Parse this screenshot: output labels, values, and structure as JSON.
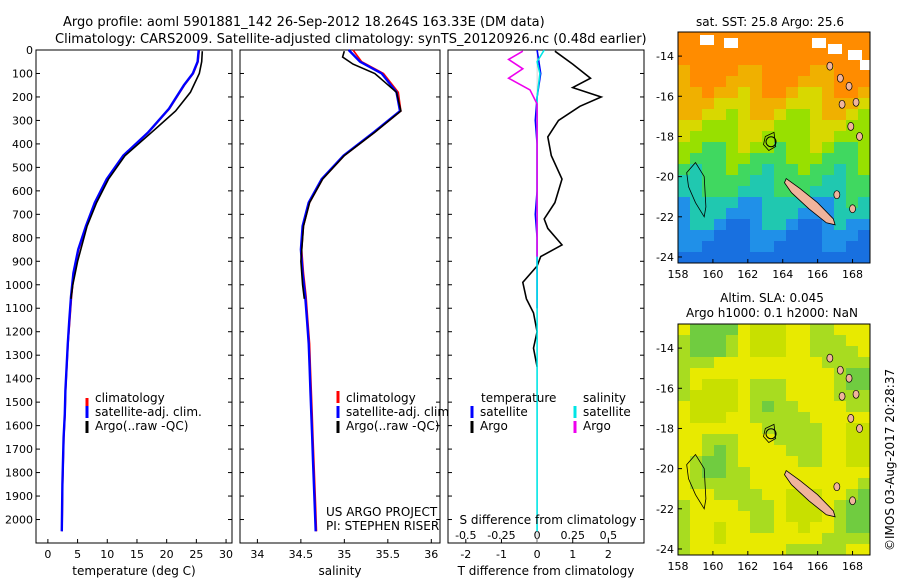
{
  "header": {
    "line1": "Argo profile: aoml 5901881_142 26-Sep-2012 18.264S 163.33E (DM data)",
    "line2": "Climatology: CARS2009. Satellite-adjusted climatology: synTS_20120926.nc (0.48d earlier)"
  },
  "colors": {
    "clim": "#ff0000",
    "sat": "#0000ff",
    "argo": "#000000",
    "sat_s": "#00e5e5",
    "argo_s": "#ee00ee",
    "land": "#f0b49c"
  },
  "project": {
    "line1": "US ARGO PROJECT",
    "line2": "PI: STEPHEN RISER"
  },
  "map_top_title": "sat. SST: 25.8 Argo: 25.6",
  "map_bottom_title1": "Altim. SLA: 0.045",
  "map_bottom_title2": "Argo h1000: 0.1 h2000: NaN",
  "credit": "©IMOS 03-Aug-2017 20:28:37",
  "legend_profile": [
    "climatology",
    "satellite-adj. clim.",
    "Argo(..raw -QC)"
  ],
  "legend_diff": {
    "t_header": "temperature",
    "s_header": "salinity",
    "t_sat": "satellite",
    "t_argo": "Argo",
    "s_sat": "satellite",
    "s_argo": "Argo"
  },
  "chart_data": [
    {
      "type": "line",
      "xlabel": "temperature (deg C)",
      "ylabel": "",
      "xlim": [
        -2,
        31
      ],
      "ylim": [
        2100,
        0
      ],
      "xticks": [
        0,
        5,
        10,
        15,
        20,
        25,
        30
      ],
      "yticks": [
        0,
        100,
        200,
        300,
        400,
        500,
        600,
        700,
        800,
        900,
        1000,
        1100,
        1200,
        1300,
        1400,
        1500,
        1600,
        1700,
        1800,
        1900,
        2000
      ],
      "series": [
        {
          "name": "climatology",
          "x": [
            25.5,
            25.3,
            24.5,
            23.0,
            20.5,
            17.0,
            12.8,
            10.0,
            8.0,
            6.5,
            5.2,
            4.4,
            4.0,
            3.7,
            3.4,
            3.2,
            3.0,
            2.9,
            2.7,
            2.6,
            2.5,
            2.45,
            2.4
          ],
          "y": [
            0,
            50,
            100,
            150,
            250,
            350,
            450,
            550,
            650,
            750,
            850,
            950,
            1050,
            1150,
            1250,
            1350,
            1450,
            1550,
            1650,
            1750,
            1850,
            1950,
            2050
          ]
        },
        {
          "name": "satellite-adj. clim.",
          "x": [
            25.4,
            25.2,
            24.4,
            22.9,
            20.4,
            16.9,
            12.7,
            9.9,
            7.9,
            6.4,
            5.1,
            4.3,
            3.9,
            3.6,
            3.35,
            3.15,
            2.95,
            2.85,
            2.65,
            2.55,
            2.45,
            2.4,
            2.35
          ],
          "y": [
            0,
            50,
            100,
            150,
            250,
            350,
            450,
            550,
            650,
            750,
            850,
            950,
            1050,
            1150,
            1250,
            1350,
            1450,
            1550,
            1650,
            1750,
            1850,
            1950,
            2050
          ]
        },
        {
          "name": "Argo(..raw -QC)",
          "x": [
            26.0,
            25.9,
            25.5,
            24.0,
            21.5,
            17.5,
            13.0,
            10.2,
            8.2,
            6.6,
            5.0,
            4.2,
            3.9
          ],
          "y": [
            5,
            50,
            100,
            180,
            260,
            350,
            450,
            550,
            650,
            750,
            900,
            1000,
            1060
          ]
        }
      ]
    },
    {
      "type": "line",
      "xlabel": "salinity",
      "ylabel": "",
      "xlim": [
        33.8,
        36.1
      ],
      "ylim": [
        2100,
        0
      ],
      "xticks": [
        34,
        34.5,
        35,
        35.5,
        36
      ],
      "series": [
        {
          "name": "climatology",
          "x": [
            35.1,
            35.2,
            35.45,
            35.62,
            35.65,
            35.35,
            35.0,
            34.75,
            34.6,
            34.53,
            34.51,
            34.53,
            34.56,
            34.58,
            34.6,
            34.61,
            34.62,
            34.63,
            34.64,
            34.65,
            34.66,
            34.67,
            34.68
          ],
          "y": [
            0,
            50,
            100,
            180,
            260,
            350,
            450,
            550,
            650,
            750,
            850,
            950,
            1050,
            1150,
            1250,
            1350,
            1450,
            1550,
            1650,
            1750,
            1850,
            1950,
            2050
          ]
        },
        {
          "name": "satellite-adj. clim.",
          "x": [
            35.05,
            35.18,
            35.43,
            35.6,
            35.64,
            35.34,
            34.99,
            34.74,
            34.59,
            34.52,
            34.5,
            34.52,
            34.55,
            34.57,
            34.59,
            34.6,
            34.61,
            34.62,
            34.63,
            34.64,
            34.65,
            34.66,
            34.67
          ],
          "y": [
            0,
            50,
            100,
            180,
            260,
            350,
            450,
            550,
            650,
            750,
            850,
            950,
            1050,
            1150,
            1250,
            1350,
            1450,
            1550,
            1650,
            1750,
            1850,
            1950,
            2050
          ]
        },
        {
          "name": "Argo(..raw -QC)",
          "x": [
            35.0,
            34.98,
            35.1,
            35.35,
            35.6,
            35.65,
            35.35,
            35.0,
            34.75,
            34.6,
            34.53,
            34.5,
            34.52,
            34.54
          ],
          "y": [
            5,
            30,
            60,
            100,
            180,
            260,
            350,
            450,
            550,
            650,
            750,
            900,
            1000,
            1060
          ]
        }
      ]
    },
    {
      "type": "line",
      "xlabel": "T difference from climatology",
      "xlabel2": "S difference from climatology",
      "xlim": [
        -2.5,
        3.0
      ],
      "x2lim": [
        -0.625,
        0.75
      ],
      "ylim": [
        2100,
        0
      ],
      "xticks": [
        -2,
        -1,
        0,
        1,
        2
      ],
      "x2ticks": [
        -0.5,
        -0.25,
        0,
        0.25,
        0.5
      ],
      "series": [
        {
          "name": "temperature satellite",
          "x": [
            0.0,
            0.1,
            0.0,
            -0.05,
            0.0,
            0.0,
            0.0,
            -0.05,
            0.0,
            0.0,
            0.0,
            0.0
          ],
          "y": [
            0,
            100,
            200,
            300,
            400,
            500,
            600,
            700,
            800,
            900,
            1000,
            1100
          ]
        },
        {
          "name": "temperature Argo",
          "x": [
            0.5,
            1.0,
            1.5,
            1.0,
            1.8,
            1.2,
            0.6,
            0.3,
            0.4,
            0.7,
            0.5,
            0.2,
            0.3,
            0.7,
            0.1,
            0.0,
            -0.4,
            -0.3,
            -0.1,
            0.0,
            -0.1,
            0.0
          ],
          "y": [
            5,
            60,
            120,
            160,
            200,
            240,
            300,
            370,
            450,
            550,
            650,
            720,
            760,
            830,
            880,
            920,
            990,
            1060,
            1120,
            1200,
            1270,
            1350
          ]
        },
        {
          "name": "salinity satellite",
          "x": [
            0.05,
            0.0,
            0.02,
            0.0,
            0.0,
            0.0,
            0.0,
            0.0,
            0.0,
            0.0,
            0.0,
            0.0,
            0.0,
            0.0,
            0.0,
            0.0,
            0.0,
            0.0,
            0.0,
            0.0
          ],
          "y": [
            0,
            50,
            100,
            200,
            300,
            400,
            500,
            600,
            700,
            800,
            900,
            1000,
            1100,
            1200,
            1300,
            1400,
            1500,
            1700,
            1900,
            2050
          ]
        },
        {
          "name": "salinity Argo",
          "x": [
            -0.1,
            -0.2,
            -0.1,
            -0.2,
            -0.05,
            0.0,
            0.0,
            0.0,
            0.0,
            0.0
          ],
          "y": [
            5,
            40,
            80,
            120,
            170,
            230,
            320,
            500,
            700,
            880
          ]
        }
      ]
    }
  ],
  "maps": [
    {
      "xlim": [
        158,
        169
      ],
      "ylim": [
        -24.3,
        -12.8
      ],
      "xticks": [
        158,
        160,
        162,
        164,
        166,
        168
      ],
      "yticks": [
        -14,
        -16,
        -18,
        -20,
        -22,
        -24
      ],
      "field": "SST"
    },
    {
      "xlim": [
        158,
        169
      ],
      "ylim": [
        -24.3,
        -12.8
      ],
      "xticks": [
        158,
        160,
        162,
        164,
        166,
        168
      ],
      "yticks": [
        -14,
        -16,
        -18,
        -20,
        -22,
        -24
      ],
      "field": "SLA"
    }
  ]
}
